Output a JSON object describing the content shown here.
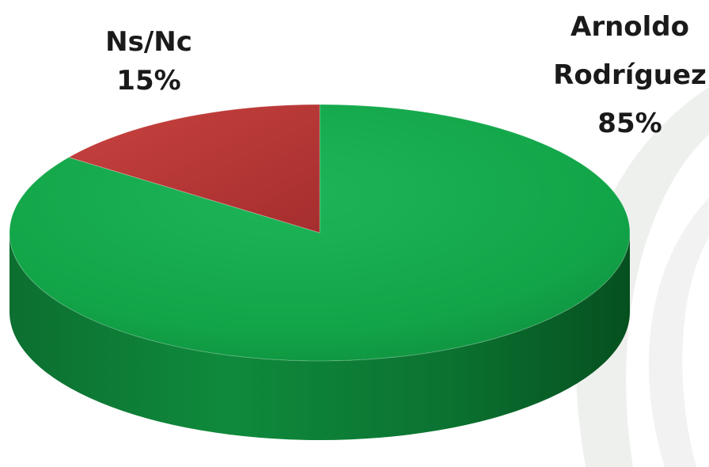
{
  "chart_data": {
    "type": "pie",
    "style": "3d",
    "slices": [
      {
        "label_lines": [
          "Arnoldo",
          "Rodríguez"
        ],
        "value_label": "85%",
        "value": 85,
        "color": "#12a548"
      },
      {
        "label_lines": [
          "Ns/Nc"
        ],
        "value_label": "15%",
        "value": 15,
        "color": "#c0393b"
      }
    ],
    "legend": "none",
    "background_decoration": "light gray swoosh"
  }
}
